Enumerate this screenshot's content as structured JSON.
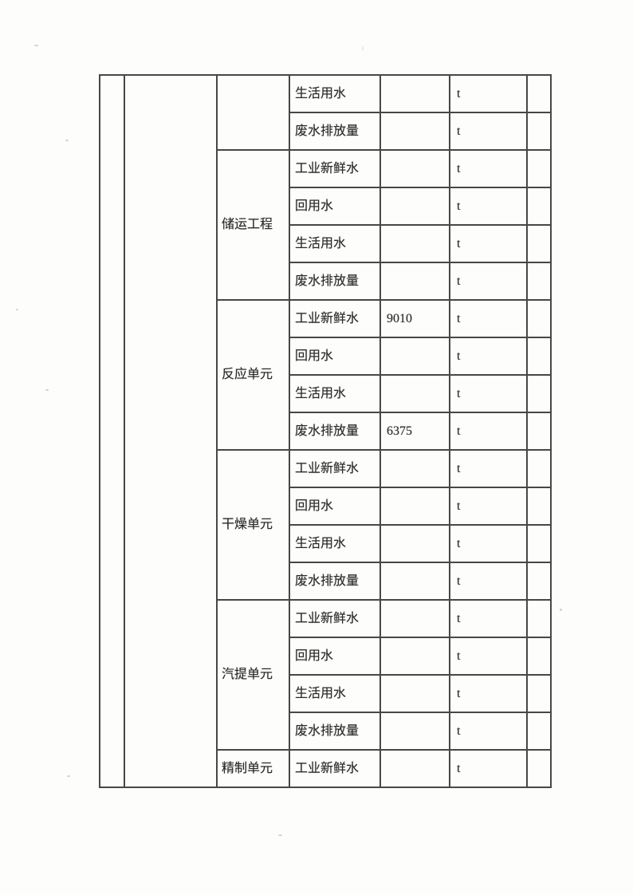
{
  "colors": {
    "paper": "#fdfdfc",
    "table_line": "#474747",
    "ink": "#2b2b2b"
  },
  "table": {
    "unit_symbol": "t",
    "groups": [
      {
        "name": "",
        "rows": [
          {
            "item": "生活用水",
            "value": "",
            "unit": "t"
          },
          {
            "item": "废水排放量",
            "value": "",
            "unit": "t"
          }
        ]
      },
      {
        "name": "储运工程",
        "rows": [
          {
            "item": "工业新鲜水",
            "value": "",
            "unit": "t"
          },
          {
            "item": "回用水",
            "value": "",
            "unit": "t"
          },
          {
            "item": "生活用水",
            "value": "",
            "unit": "t"
          },
          {
            "item": "废水排放量",
            "value": "",
            "unit": "t"
          }
        ]
      },
      {
        "name": "反应单元",
        "rows": [
          {
            "item": "工业新鲜水",
            "value": "9010",
            "unit": "t"
          },
          {
            "item": "回用水",
            "value": "",
            "unit": "t"
          },
          {
            "item": "生活用水",
            "value": "",
            "unit": "t"
          },
          {
            "item": "废水排放量",
            "value": "6375",
            "unit": "t"
          }
        ]
      },
      {
        "name": "干燥单元",
        "rows": [
          {
            "item": "工业新鲜水",
            "value": "",
            "unit": "t"
          },
          {
            "item": "回用水",
            "value": "",
            "unit": "t"
          },
          {
            "item": "生活用水",
            "value": "",
            "unit": "t"
          },
          {
            "item": "废水排放量",
            "value": "",
            "unit": "t"
          }
        ]
      },
      {
        "name": "汽提单元",
        "rows": [
          {
            "item": "工业新鲜水",
            "value": "",
            "unit": "t"
          },
          {
            "item": "回用水",
            "value": "",
            "unit": "t"
          },
          {
            "item": "生活用水",
            "value": "",
            "unit": "t"
          },
          {
            "item": "废水排放量",
            "value": "",
            "unit": "t"
          }
        ]
      },
      {
        "name": "精制单元",
        "rows": [
          {
            "item": "工业新鲜水",
            "value": "",
            "unit": "t"
          }
        ]
      }
    ]
  }
}
